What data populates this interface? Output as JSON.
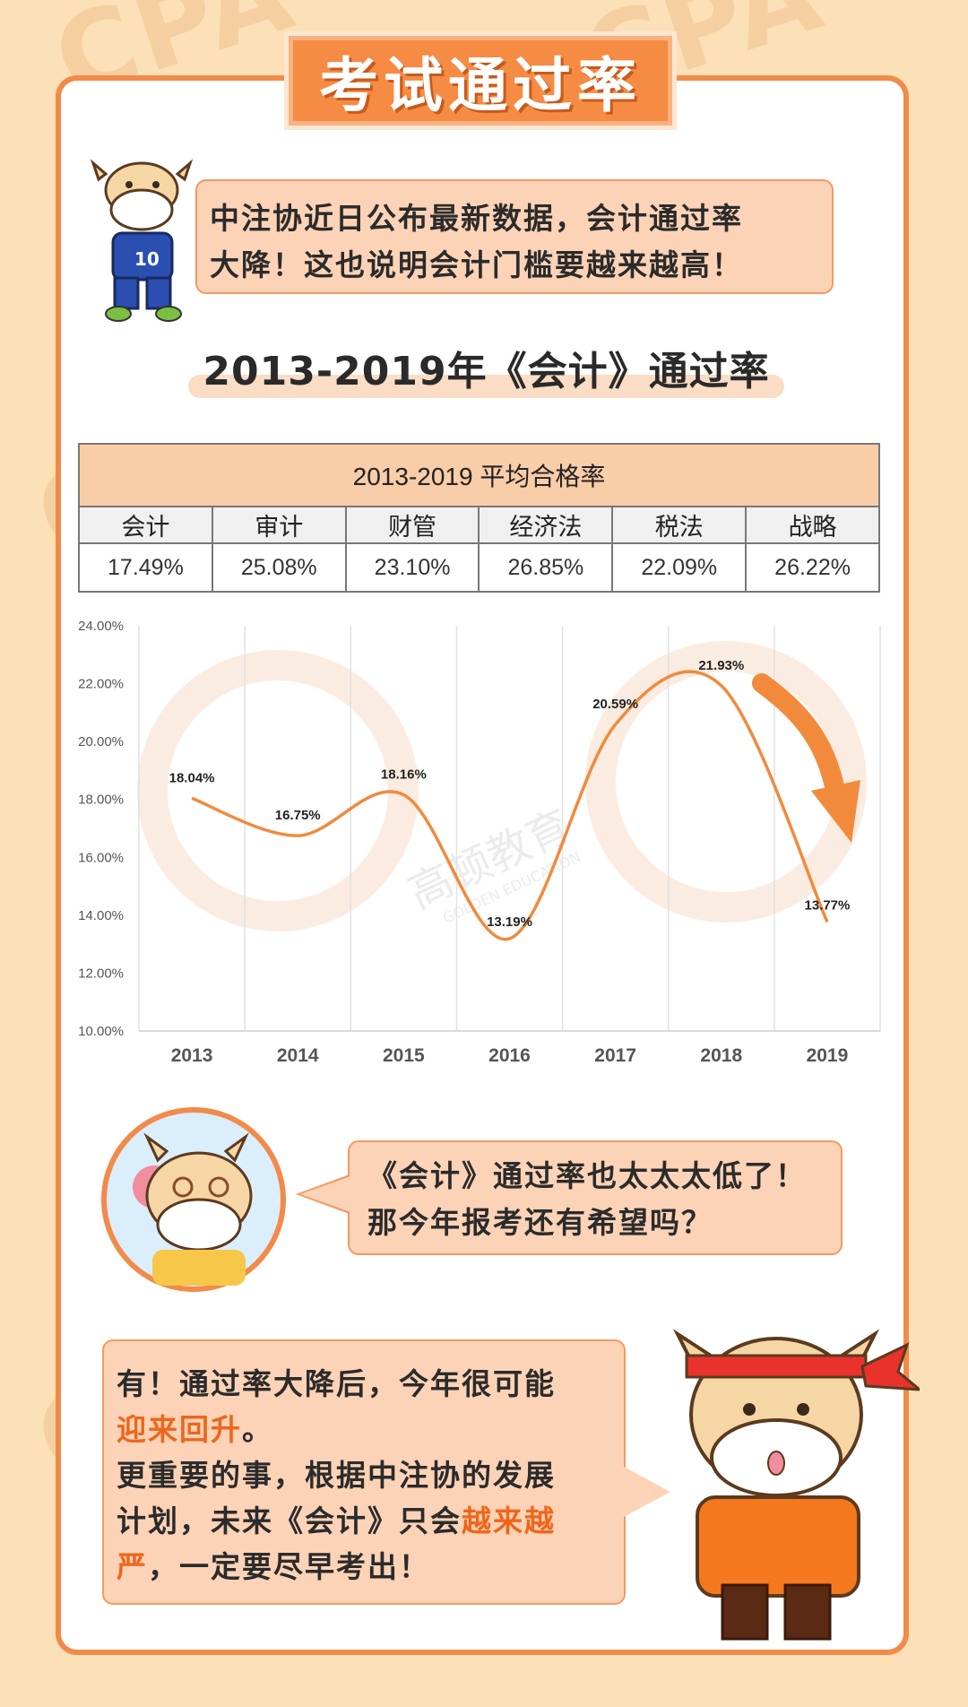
{
  "banner": {
    "title": "考试通过率"
  },
  "intro": {
    "line1": "中注协近日公布最新数据，会计通过率",
    "line2": "大降！这也说明会计门槛要越来越高！"
  },
  "subtitle": "2013-2019年《会计》通过率",
  "avg_table": {
    "title": "2013-2019 平均合格率",
    "headers": [
      "会计",
      "审计",
      "财管",
      "经济法",
      "税法",
      "战略"
    ],
    "values": [
      "17.49%",
      "25.08%",
      "23.10%",
      "26.85%",
      "22.09%",
      "26.22%"
    ]
  },
  "watermark": {
    "brand": "高顿教育",
    "sub": "GOLDEN EDUCATION"
  },
  "question": {
    "line1": "《会计》通过率也太太太低了！",
    "line2": "那今年报考还有希望吗？"
  },
  "answer": {
    "p1a": "有！通过率大降后，今年很可能",
    "p1b": "迎来回升",
    "p1c": "。",
    "p2a": "更重要的事，根据中注协的发展",
    "p2b": "计划，未来《会计》只会",
    "p2c": "越来越",
    "p2d": "严",
    "p2e": "，一定要尽早考出！"
  },
  "colors": {
    "accent": "#f68b43",
    "line": "#f28a3c",
    "highlight": "#f0651a"
  },
  "chart_data": {
    "type": "line",
    "categories": [
      "2013",
      "2014",
      "2015",
      "2016",
      "2017",
      "2018",
      "2019"
    ],
    "values": [
      18.04,
      16.75,
      18.16,
      13.19,
      20.59,
      21.93,
      13.77
    ],
    "labels": [
      "18.04%",
      "16.75%",
      "18.16%",
      "13.19%",
      "20.59%",
      "21.93%",
      "13.77%"
    ],
    "yticks": [
      "10.00%",
      "12.00%",
      "14.00%",
      "16.00%",
      "18.00%",
      "20.00%",
      "22.00%",
      "24.00%"
    ],
    "ylim": [
      10,
      24
    ],
    "title": "",
    "xlabel": "",
    "ylabel": "",
    "grid": "vertical",
    "smooth": true
  }
}
